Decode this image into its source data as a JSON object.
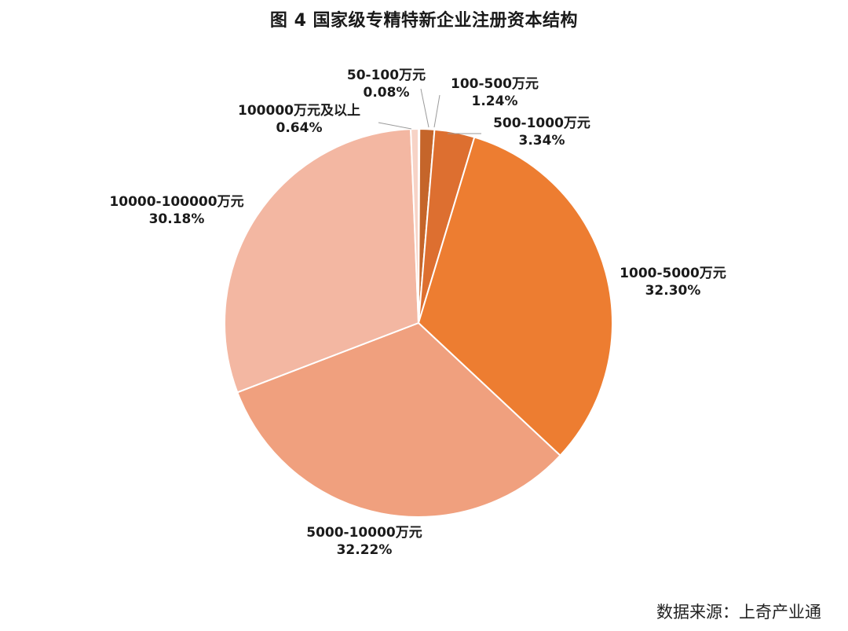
{
  "title": "图 4  国家级专精特新企业注册资本结构",
  "source": "数据来源：上奇产业通",
  "chart_data": {
    "type": "pie",
    "title": "图 4  国家级专精特新企业注册资本结构",
    "start_angle_deg": 0,
    "direction": "clockwise",
    "slices": [
      {
        "label": "50-100万元",
        "pct_text": "0.08%",
        "value": 0.08,
        "color": "#a34d1a"
      },
      {
        "label": "100-500万元",
        "pct_text": "1.24%",
        "value": 1.24,
        "color": "#c5652a"
      },
      {
        "label": "500-1000万元",
        "pct_text": "3.34%",
        "value": 3.34,
        "color": "#dd6f30"
      },
      {
        "label": "1000-5000万元",
        "pct_text": "32.30%",
        "value": 32.3,
        "color": "#ed7d31"
      },
      {
        "label": "5000-10000万元",
        "pct_text": "32.22%",
        "value": 32.22,
        "color": "#f0a07e"
      },
      {
        "label": "10000-100000万元",
        "pct_text": "30.18%",
        "value": 30.18,
        "color": "#f3b7a2"
      },
      {
        "label": "100000万元及以上",
        "pct_text": "0.64%",
        "value": 0.64,
        "color": "#f7d3c6"
      }
    ]
  }
}
